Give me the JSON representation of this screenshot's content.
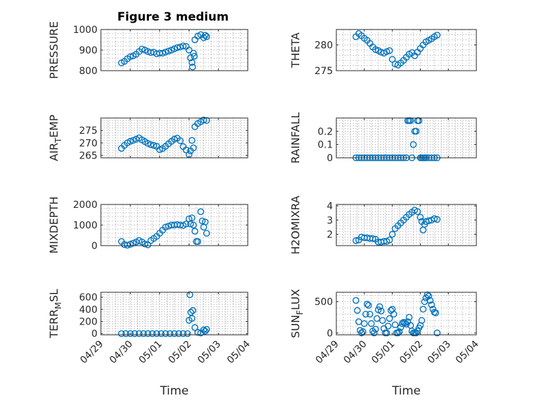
{
  "figure": {
    "title": "Figure 3 medium"
  },
  "chart_data": [
    {
      "type": "scatter",
      "ylabel": "PRESSURE",
      "xlabel": "",
      "xlim": [
        "04/29",
        "05/04"
      ],
      "ylim": [
        800,
        1000
      ],
      "yticks": [
        800,
        900,
        1000
      ],
      "xticks": [
        "04/29",
        "04/30",
        "05/01",
        "05/02",
        "05/03",
        "05/04"
      ],
      "grid": true,
      "series": [
        {
          "x_days": [
            0.7,
            0.8,
            0.9,
            1.0,
            1.1,
            1.2,
            1.3,
            1.4,
            1.5,
            1.6,
            1.7,
            1.8,
            1.9,
            2.0,
            2.1,
            2.2,
            2.3,
            2.4,
            2.5,
            2.6,
            2.7,
            2.8,
            2.9,
            3.0,
            3.05,
            3.1,
            3.12,
            3.15,
            3.18,
            3.2,
            3.3,
            3.4,
            3.5,
            3.55,
            3.6
          ],
          "y": [
            838,
            845,
            858,
            868,
            872,
            880,
            893,
            905,
            900,
            893,
            888,
            890,
            882,
            885,
            885,
            890,
            895,
            900,
            906,
            912,
            915,
            920,
            918,
            900,
            862,
            840,
            818,
            885,
            870,
            950,
            968,
            975,
            960,
            972,
            965
          ]
        }
      ]
    },
    {
      "type": "scatter",
      "ylabel": "THETA",
      "xlabel": "",
      "xlim": [
        "04/29",
        "05/04"
      ],
      "ylim": [
        275,
        283
      ],
      "yticks": [
        275,
        280
      ],
      "xticks": [
        "04/29",
        "04/30",
        "05/01",
        "05/02",
        "05/03",
        "05/04"
      ],
      "grid": true,
      "series": [
        {
          "x_days": [
            0.7,
            0.8,
            0.9,
            1.0,
            1.1,
            1.2,
            1.3,
            1.4,
            1.5,
            1.6,
            1.7,
            1.8,
            1.9,
            2.0,
            2.1,
            2.2,
            2.3,
            2.4,
            2.5,
            2.6,
            2.7,
            2.8,
            2.9,
            3.0,
            3.1,
            3.2,
            3.3,
            3.4,
            3.5,
            3.6
          ],
          "y": [
            281.6,
            282.2,
            281.8,
            281.3,
            280.9,
            280.3,
            279.6,
            279.1,
            278.9,
            278.6,
            278.4,
            278.7,
            278.9,
            277.2,
            276.3,
            276.1,
            276.5,
            277.0,
            277.6,
            278.2,
            278.5,
            277.9,
            278.6,
            279.3,
            280.0,
            280.6,
            280.9,
            281.2,
            281.6,
            281.9
          ]
        }
      ]
    },
    {
      "type": "scatter",
      "ylabel": "AIR_TEMP",
      "xlabel": "",
      "xlim": [
        "04/29",
        "05/04"
      ],
      "ylim": [
        264,
        280
      ],
      "yticks": [
        265,
        270,
        275
      ],
      "xticks": [
        "04/29",
        "04/30",
        "05/01",
        "05/02",
        "05/03",
        "05/04"
      ],
      "grid": true,
      "series": [
        {
          "x_days": [
            0.7,
            0.8,
            0.9,
            1.0,
            1.1,
            1.2,
            1.3,
            1.4,
            1.5,
            1.6,
            1.7,
            1.8,
            1.9,
            2.0,
            2.1,
            2.2,
            2.3,
            2.4,
            2.5,
            2.6,
            2.7,
            2.8,
            2.9,
            3.0,
            3.05,
            3.1,
            3.15,
            3.2,
            3.3,
            3.4,
            3.5,
            3.6
          ],
          "y": [
            267.8,
            269.0,
            270.0,
            270.6,
            271.0,
            271.5,
            272.0,
            271.2,
            270.5,
            269.8,
            269.3,
            269.0,
            268.6,
            267.3,
            267.7,
            268.6,
            269.6,
            270.6,
            271.5,
            271.9,
            270.9,
            268.5,
            267.2,
            265.3,
            266.8,
            271.0,
            268.0,
            276.5,
            277.8,
            278.5,
            279.2,
            279.0
          ]
        }
      ]
    },
    {
      "type": "scatter",
      "ylabel": "RAINFALL",
      "xlabel": "",
      "xlim": [
        "04/29",
        "05/04"
      ],
      "ylim": [
        0,
        0.3
      ],
      "yticks": [
        0,
        0.1,
        0.2
      ],
      "xticks": [
        "04/29",
        "04/30",
        "05/01",
        "05/02",
        "05/03",
        "05/04"
      ],
      "grid": true,
      "series": [
        {
          "x_days": [
            0.7,
            0.8,
            0.9,
            1.0,
            1.1,
            1.2,
            1.3,
            1.4,
            1.5,
            1.6,
            1.7,
            1.8,
            1.9,
            2.0,
            2.1,
            2.2,
            2.3,
            2.4,
            2.5,
            2.55,
            2.6,
            2.65,
            2.7,
            2.75,
            2.8,
            2.85,
            2.9,
            2.95,
            3.0,
            3.05,
            3.1,
            3.15,
            3.2,
            3.3,
            3.4,
            3.5,
            3.6
          ],
          "y": [
            0,
            0,
            0,
            0,
            0,
            0,
            0,
            0,
            0,
            0,
            0,
            0,
            0,
            0,
            0,
            0,
            0,
            0,
            0,
            0.28,
            0.28,
            0.28,
            0,
            0.1,
            0.2,
            0.2,
            0.28,
            0.28,
            0,
            0,
            0,
            0,
            0,
            0,
            0,
            0,
            0
          ]
        }
      ]
    },
    {
      "type": "scatter",
      "ylabel": "MIXDEPTH",
      "xlabel": "",
      "xlim": [
        "04/29",
        "05/04"
      ],
      "ylim": [
        0,
        2000
      ],
      "yticks": [
        0,
        1000,
        2000
      ],
      "xticks": [
        "04/29",
        "04/30",
        "05/01",
        "05/02",
        "05/03",
        "05/04"
      ],
      "grid": true,
      "series": [
        {
          "x_days": [
            0.7,
            0.8,
            0.9,
            1.0,
            1.1,
            1.2,
            1.3,
            1.4,
            1.5,
            1.6,
            1.7,
            1.8,
            1.9,
            2.0,
            2.1,
            2.2,
            2.3,
            2.4,
            2.5,
            2.6,
            2.7,
            2.8,
            2.9,
            3.0,
            3.05,
            3.1,
            3.15,
            3.2,
            3.25,
            3.3,
            3.4,
            3.45,
            3.5,
            3.55,
            3.6
          ],
          "y": [
            200,
            50,
            20,
            60,
            120,
            180,
            250,
            180,
            80,
            40,
            250,
            350,
            450,
            600,
            750,
            900,
            950,
            1000,
            1000,
            1020,
            1000,
            980,
            1050,
            1300,
            1050,
            1350,
            1000,
            700,
            200,
            200,
            1650,
            1200,
            900,
            1150,
            600
          ]
        }
      ]
    },
    {
      "type": "scatter",
      "ylabel": "H2OMIXRA",
      "xlabel": "",
      "xlim": [
        "04/29",
        "05/04"
      ],
      "ylim": [
        1.2,
        4.1
      ],
      "yticks": [
        2,
        3,
        4
      ],
      "xticks": [
        "04/29",
        "04/30",
        "05/01",
        "05/02",
        "05/03",
        "05/04"
      ],
      "grid": true,
      "series": [
        {
          "x_days": [
            0.7,
            0.8,
            0.9,
            1.0,
            1.1,
            1.2,
            1.3,
            1.4,
            1.5,
            1.6,
            1.7,
            1.8,
            1.9,
            2.0,
            2.1,
            2.2,
            2.3,
            2.4,
            2.5,
            2.6,
            2.7,
            2.8,
            2.9,
            3.0,
            3.05,
            3.1,
            3.15,
            3.2,
            3.3,
            3.4,
            3.5,
            3.6
          ],
          "y": [
            1.55,
            1.6,
            1.8,
            1.75,
            1.75,
            1.7,
            1.7,
            1.65,
            1.45,
            1.45,
            1.5,
            1.5,
            1.6,
            2.0,
            2.4,
            2.6,
            2.8,
            3.0,
            3.2,
            3.4,
            3.55,
            3.7,
            3.6,
            3.2,
            2.9,
            2.3,
            2.7,
            2.9,
            2.95,
            3.0,
            3.1,
            3.05
          ]
        }
      ]
    },
    {
      "type": "scatter",
      "ylabel": "TERR_MSL",
      "xlabel": "Time",
      "xlim": [
        "04/29",
        "05/04"
      ],
      "ylim": [
        -20,
        680
      ],
      "yticks": [
        0,
        200,
        400,
        600
      ],
      "xticks": [
        "04/29",
        "04/30",
        "05/01",
        "05/02",
        "05/03",
        "05/04"
      ],
      "grid": true,
      "series": [
        {
          "x_days": [
            0.7,
            0.85,
            1.0,
            1.15,
            1.3,
            1.45,
            1.6,
            1.75,
            1.9,
            2.05,
            2.2,
            2.35,
            2.5,
            2.65,
            2.8,
            2.95,
            3.0,
            3.03,
            3.06,
            3.1,
            3.13,
            3.2,
            3.3,
            3.4,
            3.5,
            3.55,
            3.6
          ],
          "y": [
            0,
            0,
            0,
            0,
            0,
            0,
            0,
            0,
            0,
            0,
            0,
            0,
            0,
            0,
            0,
            0,
            220,
            640,
            350,
            250,
            380,
            100,
            20,
            10,
            60,
            40,
            70
          ]
        }
      ]
    },
    {
      "type": "scatter",
      "ylabel": "SUN_FLUX",
      "xlabel": "Time",
      "xlim": [
        "04/29",
        "05/04"
      ],
      "ylim": [
        -30,
        650
      ],
      "yticks": [
        0,
        500
      ],
      "xticks": [
        "04/29",
        "04/30",
        "05/01",
        "05/02",
        "05/03",
        "05/04"
      ],
      "grid": true,
      "series": [
        {
          "x_days": [
            0.7,
            0.75,
            0.8,
            0.85,
            0.9,
            0.95,
            1.0,
            1.05,
            1.1,
            1.15,
            1.2,
            1.25,
            1.3,
            1.35,
            1.4,
            1.45,
            1.5,
            1.55,
            1.6,
            1.65,
            1.7,
            1.75,
            1.8,
            1.85,
            1.9,
            1.95,
            2.0,
            2.05,
            2.1,
            2.15,
            2.2,
            2.25,
            2.3,
            2.35,
            2.4,
            2.45,
            2.5,
            2.55,
            2.6,
            2.65,
            2.7,
            2.75,
            2.8,
            2.85,
            2.9,
            2.95,
            3.0,
            3.05,
            3.1,
            3.15,
            3.2,
            3.25,
            3.3,
            3.35,
            3.4,
            3.45,
            3.5,
            3.55,
            3.6
          ],
          "y": [
            520,
            360,
            180,
            40,
            0,
            20,
            150,
            300,
            460,
            440,
            300,
            150,
            30,
            0,
            60,
            230,
            370,
            420,
            350,
            200,
            70,
            0,
            0,
            110,
            230,
            360,
            380,
            300,
            130,
            0,
            0,
            20,
            90,
            150,
            170,
            160,
            140,
            180,
            250,
            120,
            30,
            0,
            0,
            0,
            30,
            80,
            120,
            200,
            380,
            500,
            560,
            610,
            590,
            520,
            450,
            380,
            330,
            320,
            0
          ]
        }
      ]
    }
  ]
}
